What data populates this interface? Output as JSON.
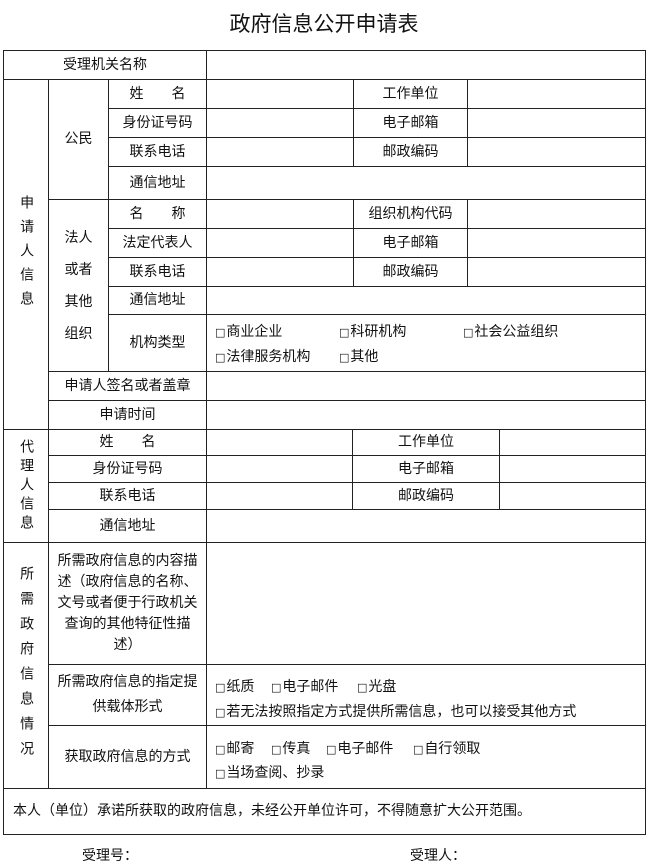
{
  "title": "政府信息公开申请表",
  "agency_label": "受理机关名称",
  "applicant": {
    "section_label": "申请人信息",
    "citizen": {
      "group_label": "公民",
      "name": "姓　　名",
      "work_unit": "工作单位",
      "id_number": "身份证号码",
      "email": "电子邮箱",
      "phone": "联系电话",
      "postcode": "邮政编码",
      "address": "通信地址"
    },
    "org": {
      "group_label": "法人或者其他组织",
      "name": "名　　称",
      "org_code": "组织机构代码",
      "legal_rep": "法定代表人",
      "email": "电子邮箱",
      "phone": "联系电话",
      "postcode": "邮政编码",
      "address": "通信地址",
      "type_label": "机构类型",
      "type_options": [
        "商业企业",
        "科研机构",
        "社会公益组织",
        "法律服务机构",
        "其他"
      ]
    },
    "signature": "申请人签名或者盖章",
    "date": "申请时间"
  },
  "agent": {
    "section_label": "代理人信息",
    "name": "姓　　名",
    "work_unit": "工作单位",
    "id_number": "身份证号码",
    "email": "电子邮箱",
    "phone": "联系电话",
    "postcode": "邮政编码",
    "address": "通信地址"
  },
  "info": {
    "section_label": "所需政府信息情况",
    "desc_label": "所需政府信息的内容描述（政府信息的名称、文号或者便于行政机关查询的其他特征性描述）",
    "carrier_label": "所需政府信息的指定提供载体形式",
    "carrier_options": [
      "纸质",
      "电子邮件",
      "光盘",
      "若无法按照指定方式提供所需信息，也可以接受其他方式"
    ],
    "method_label": "获取政府信息的方式",
    "method_options": [
      "邮寄",
      "传真",
      "电子邮件",
      "自行领取",
      "当场查阅、抄录"
    ]
  },
  "commitment": "本人（单位）承诺所获取的政府信息，未经公开单位许可，不得随意扩大公开范围。",
  "footer": {
    "receipt_no": "受理号：",
    "handler": "受理人："
  }
}
